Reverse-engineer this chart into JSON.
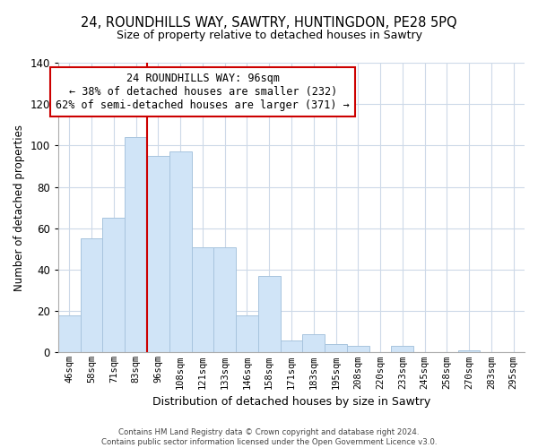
{
  "title": "24, ROUNDHILLS WAY, SAWTRY, HUNTINGDON, PE28 5PQ",
  "subtitle": "Size of property relative to detached houses in Sawtry",
  "xlabel": "Distribution of detached houses by size in Sawtry",
  "ylabel": "Number of detached properties",
  "categories": [
    "46sqm",
    "58sqm",
    "71sqm",
    "83sqm",
    "96sqm",
    "108sqm",
    "121sqm",
    "133sqm",
    "146sqm",
    "158sqm",
    "171sqm",
    "183sqm",
    "195sqm",
    "208sqm",
    "220sqm",
    "233sqm",
    "245sqm",
    "258sqm",
    "270sqm",
    "283sqm",
    "295sqm"
  ],
  "values": [
    18,
    55,
    65,
    104,
    95,
    97,
    51,
    51,
    18,
    37,
    6,
    9,
    4,
    3,
    0,
    3,
    0,
    0,
    1,
    0,
    0
  ],
  "bar_color": "#d0e4f7",
  "bar_edge_color": "#a8c4de",
  "vline_index": 3,
  "vline_color": "#cc0000",
  "ylim": [
    0,
    140
  ],
  "yticks": [
    0,
    20,
    40,
    60,
    80,
    100,
    120,
    140
  ],
  "annotation_title": "24 ROUNDHILLS WAY: 96sqm",
  "annotation_line1": "← 38% of detached houses are smaller (232)",
  "annotation_line2": "62% of semi-detached houses are larger (371) →",
  "annotation_box_color": "#ffffff",
  "annotation_box_edge": "#cc0000",
  "footer_line1": "Contains HM Land Registry data © Crown copyright and database right 2024.",
  "footer_line2": "Contains public sector information licensed under the Open Government Licence v3.0.",
  "background_color": "#ffffff",
  "grid_color": "#cdd9e8"
}
